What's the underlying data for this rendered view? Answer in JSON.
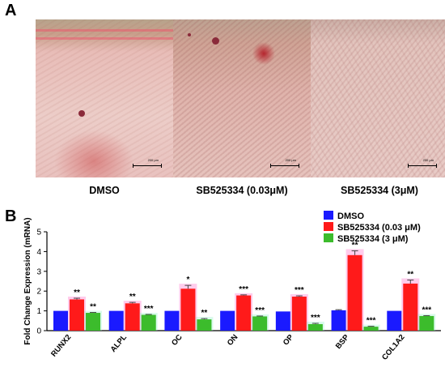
{
  "panel_a": {
    "letter": "A",
    "images": [
      {
        "caption": "DMSO",
        "scale_label": "200 μm"
      },
      {
        "caption": "SB525334 (0.03μM)",
        "scale_label": "200 μm"
      },
      {
        "caption": "SB525334 (3μM)",
        "scale_label": "200 μm"
      }
    ]
  },
  "panel_b": {
    "letter": "B"
  },
  "chart_data": {
    "type": "bar",
    "ylabel": "Fold Change Expression (mRNA)",
    "ylim": [
      0,
      5
    ],
    "yticks": [
      "0",
      "1",
      "2",
      "3",
      "4",
      "5"
    ],
    "categories": [
      "RUNX2",
      "ALPL",
      "OC",
      "ON",
      "OP",
      "BSP",
      "COL1A2"
    ],
    "legend_position": "top-right",
    "series": [
      {
        "name": "DMSO",
        "color": "#1a1aff",
        "values": [
          1.0,
          1.0,
          1.0,
          1.0,
          0.97,
          1.03,
          1.0
        ],
        "errors": [
          0.0,
          0.0,
          0.0,
          0.0,
          0.0,
          0.03,
          0.0
        ],
        "significance": [
          "",
          "",
          "",
          "",
          "",
          "",
          ""
        ]
      },
      {
        "name": "SB525334 (0.03 μM)",
        "color": "#ff1a1a",
        "values": [
          1.58,
          1.38,
          2.12,
          1.78,
          1.72,
          3.82,
          2.38
        ],
        "errors": [
          0.06,
          0.05,
          0.17,
          0.03,
          0.04,
          0.22,
          0.18
        ],
        "significance": [
          "**",
          "**",
          "*",
          "***",
          "***",
          "**",
          "**"
        ]
      },
      {
        "name": "SB525334 (3 μM)",
        "color": "#3cbc2c",
        "values": [
          0.9,
          0.8,
          0.57,
          0.72,
          0.33,
          0.2,
          0.74
        ],
        "errors": [
          0.02,
          0.02,
          0.04,
          0.02,
          0.04,
          0.02,
          0.02
        ],
        "significance": [
          "**",
          "***",
          "**",
          "***",
          "***",
          "***",
          "***"
        ]
      }
    ]
  }
}
